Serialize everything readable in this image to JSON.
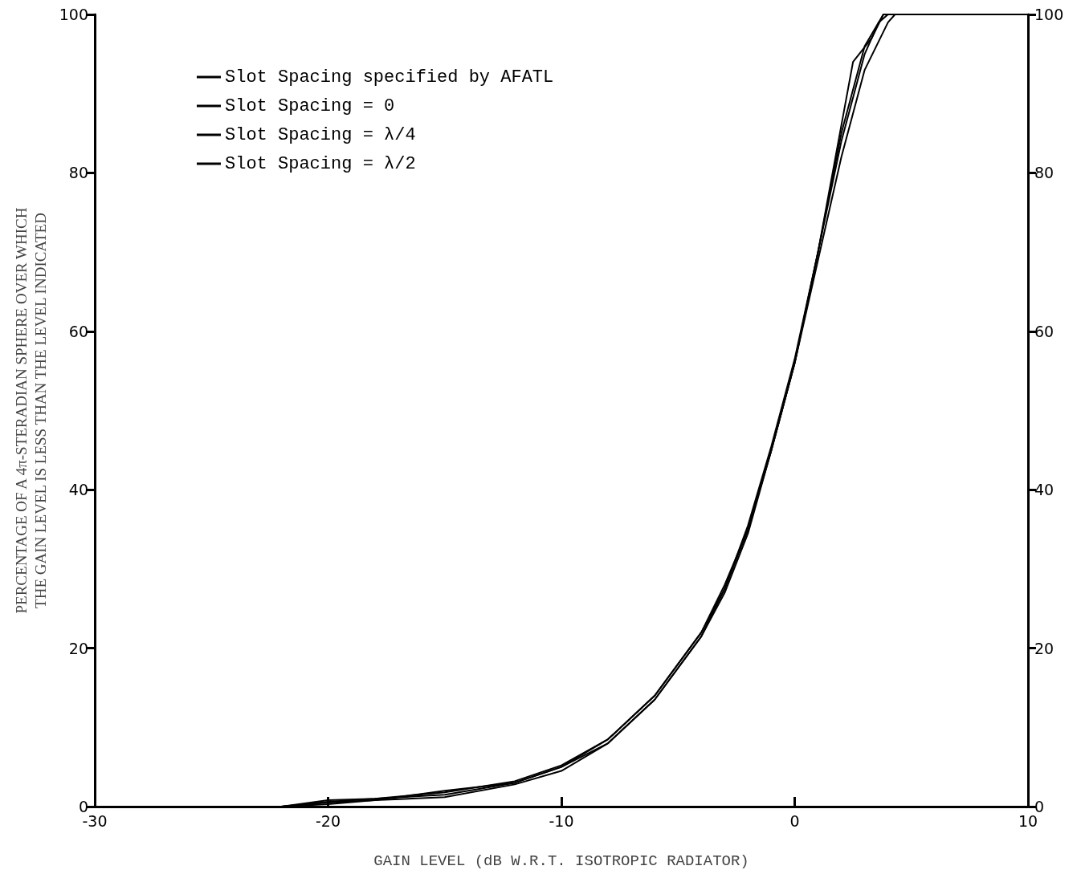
{
  "chart_data": {
    "type": "line",
    "xlabel": "GAIN LEVEL (dB W.R.T. ISOTROPIC RADIATOR)",
    "ylabel": "PERCENTAGE OF A 4π-STERADIAN SPHERE OVER WHICH\nTHE GAIN LEVEL IS LESS THAN THE LEVEL INDICATED",
    "xlim": [
      -30,
      10
    ],
    "xticks": [
      -30,
      -20,
      -10,
      0,
      10
    ],
    "ylim": [
      0,
      100
    ],
    "yticks": [
      0,
      20,
      40,
      60,
      80,
      100
    ],
    "y2lim": [
      0,
      100
    ],
    "y2ticks": [
      0,
      20,
      40,
      60,
      80,
      100
    ],
    "grid": false,
    "legend": "top left",
    "marker": "none",
    "line_style": "solid",
    "series": [
      {
        "name": "Slot Spacing specified by AFATL",
        "color": "#000000",
        "x": [
          -30,
          -22,
          -20,
          -18,
          -15,
          -12,
          -10,
          -8,
          -6,
          -4,
          -3,
          -2,
          -1,
          0,
          1,
          2,
          2.5,
          3.3,
          3.8,
          4,
          10
        ],
        "values": [
          0,
          0,
          0.8,
          1,
          1.5,
          3,
          5,
          8,
          13.5,
          21.5,
          27.5,
          35,
          45,
          56,
          70,
          86,
          94,
          97,
          100,
          100,
          100
        ]
      },
      {
        "name": "Slot Spacing = 0",
        "color": "#000000",
        "x": [
          -30,
          -22,
          -20,
          -18,
          -15,
          -12,
          -10,
          -8,
          -6,
          -4,
          -3,
          -2,
          -1,
          0,
          1,
          2,
          3,
          3.6,
          4,
          10
        ],
        "values": [
          0,
          0,
          0.3,
          0.8,
          2,
          3,
          5,
          8.5,
          14,
          22,
          28,
          35,
          45,
          56,
          70,
          84,
          95,
          99,
          100,
          100
        ]
      },
      {
        "name": "Slot Spacing = λ/4",
        "color": "#000000",
        "x": [
          -30,
          -22,
          -20,
          -18,
          -15,
          -12,
          -10,
          -8,
          -6,
          -4,
          -3,
          -2,
          -1,
          0,
          1,
          2,
          3,
          4,
          4.3,
          10
        ],
        "values": [
          0,
          0,
          0.5,
          0.8,
          1.2,
          2.8,
          4.5,
          8,
          13.5,
          21.5,
          27,
          34.5,
          45,
          56,
          69,
          82,
          93,
          99,
          100,
          100
        ]
      },
      {
        "name": "Slot Spacing = λ/2",
        "color": "#000000",
        "x": [
          -30,
          -22,
          -20,
          -18,
          -15,
          -12,
          -10,
          -8,
          -6,
          -4,
          -3,
          -2,
          -1,
          0,
          1,
          2,
          3,
          3.8,
          10
        ],
        "values": [
          0,
          0,
          0.6,
          1,
          1.8,
          3.2,
          5.2,
          8.5,
          14,
          22,
          27.5,
          35.5,
          45.5,
          56.5,
          70,
          85,
          96,
          100,
          100
        ]
      }
    ]
  }
}
